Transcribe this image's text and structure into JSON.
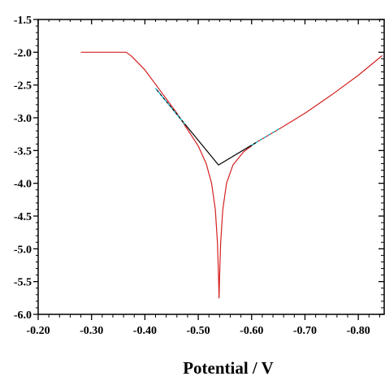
{
  "chart_data": {
    "type": "line",
    "title": "",
    "xlabel": "Potential / V",
    "ylabel": "",
    "xlim": [
      -0.2,
      -0.85
    ],
    "ylim": [
      -6.0,
      -1.5
    ],
    "x_reversed": true,
    "x_ticks": [
      "-0.20",
      "-0.30",
      "-0.40",
      "-0.50",
      "-0.60",
      "-0.70",
      "-0.80"
    ],
    "x_tick_values": [
      -0.2,
      -0.3,
      -0.4,
      -0.5,
      -0.6,
      -0.7,
      -0.8
    ],
    "y_ticks": [
      "-1.5",
      "-2.0",
      "-2.5",
      "-3.0",
      "-3.5",
      "-4.0",
      "-4.5",
      "-5.0",
      "-5.5",
      "-6.0"
    ],
    "y_tick_values": [
      -1.5,
      -2.0,
      -2.5,
      -3.0,
      -3.5,
      -4.0,
      -4.5,
      -5.0,
      -5.5,
      -6.0
    ],
    "grid": false,
    "legend": "none",
    "series": [
      {
        "color": "#d42020",
        "points": [
          [
            -0.28,
            -2.0
          ],
          [
            -0.365,
            -2.0
          ],
          [
            -0.375,
            -2.06
          ],
          [
            -0.4,
            -2.27
          ],
          [
            -0.43,
            -2.6
          ],
          [
            -0.46,
            -2.93
          ],
          [
            -0.48,
            -3.18
          ],
          [
            -0.5,
            -3.43
          ],
          [
            -0.515,
            -3.7
          ],
          [
            -0.525,
            -4.0
          ],
          [
            -0.532,
            -4.4
          ],
          [
            -0.536,
            -4.9
          ],
          [
            -0.538,
            -5.4
          ],
          [
            -0.539,
            -5.75
          ],
          [
            -0.54,
            -5.4
          ],
          [
            -0.542,
            -4.9
          ],
          [
            -0.546,
            -4.4
          ],
          [
            -0.553,
            -4.0
          ],
          [
            -0.565,
            -3.72
          ],
          [
            -0.585,
            -3.52
          ],
          [
            -0.61,
            -3.37
          ],
          [
            -0.65,
            -3.18
          ],
          [
            -0.7,
            -2.93
          ],
          [
            -0.75,
            -2.65
          ],
          [
            -0.8,
            -2.35
          ],
          [
            -0.845,
            -2.05
          ]
        ]
      },
      {
        "color": "#000000",
        "points": [
          [
            -0.42,
            -2.55
          ],
          [
            -0.538,
            -3.72
          ],
          [
            -0.61,
            -3.37
          ]
        ]
      },
      {
        "color": "#22c4d8",
        "dashed": true,
        "points": [
          [
            -0.42,
            -2.55
          ],
          [
            -0.475,
            -3.1
          ]
        ]
      },
      {
        "color": "#22c4d8",
        "dashed": true,
        "points": [
          [
            -0.6,
            -3.42
          ],
          [
            -0.655,
            -3.15
          ]
        ]
      }
    ]
  }
}
